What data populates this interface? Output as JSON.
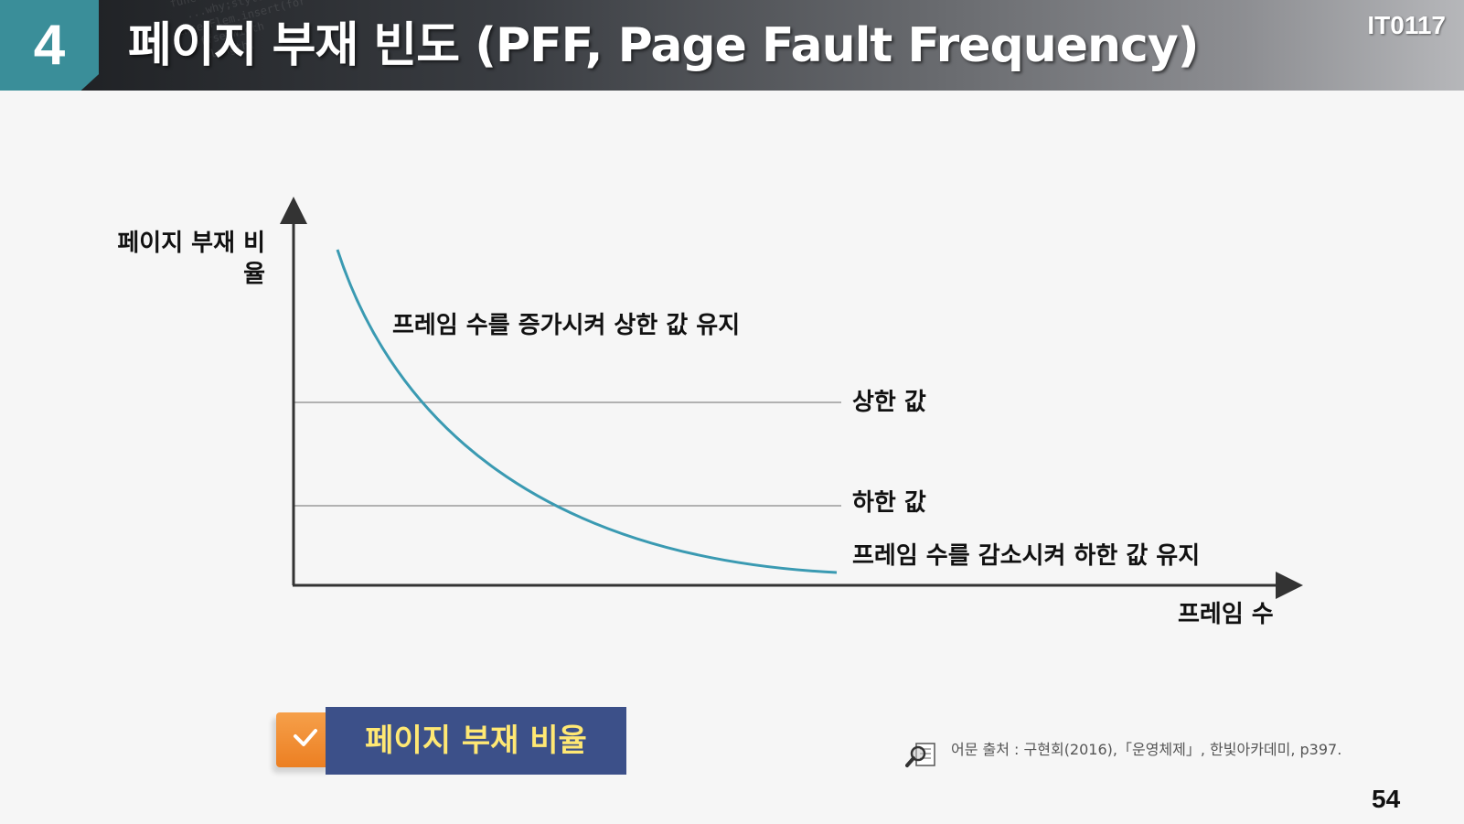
{
  "slide": {
    "section_number": "4",
    "title": "페이지 부재 빈도 (PFF, Page Fault Frequency)",
    "course_code": "IT0117",
    "page_number": "54"
  },
  "diagram": {
    "y_axis_label": "페이지 부재 비율",
    "x_axis_label": "프레임 수",
    "upper_threshold_label": "상한 값",
    "lower_threshold_label": "하한 값",
    "upper_note": "프레임 수를 증가시켜 상한 값 유지",
    "lower_note": "프레임 수를 감소시켜 하한 값 유지",
    "colors": {
      "curve": "#3a9ab2",
      "axis": "#333333",
      "threshold_line": "#888888"
    }
  },
  "callout": {
    "label": "페이지 부재 비율",
    "icon": "checkmark-icon",
    "colors": {
      "box": "#3c5089",
      "text": "#ffe873",
      "tab": "#ec7f22"
    }
  },
  "source": {
    "icon": "magnifier-document-icon",
    "text": "어문 출처 : 구현회(2016),「운영체제」, 한빛아카데미, p397."
  }
}
